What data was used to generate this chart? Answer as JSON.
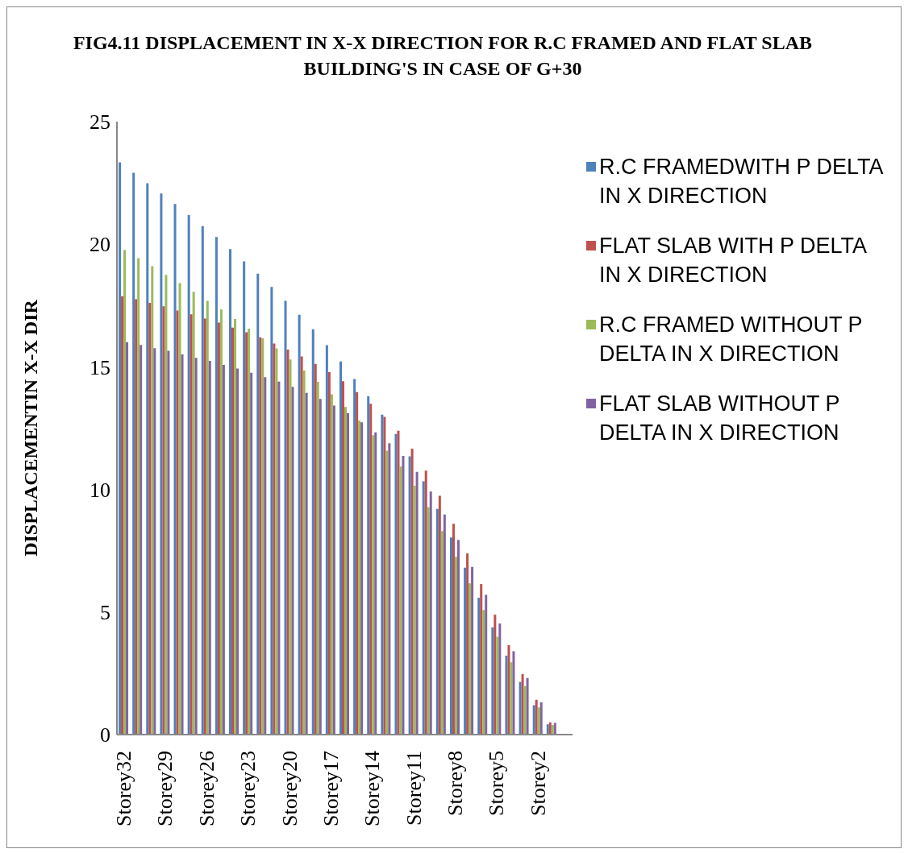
{
  "chart_data": {
    "type": "bar",
    "title": "FIG4.11 DISPLACEMENT IN X-X DIRECTION FOR R.C FRAMED AND FLAT SLAB BUILDING'S IN CASE OF G+30",
    "ylabel": "DISPLACEMENTIN X-X DIR",
    "categories": [
      "Storey32",
      null,
      null,
      "Storey29",
      null,
      null,
      "Storey26",
      null,
      null,
      "Storey23",
      null,
      null,
      "Storey20",
      null,
      null,
      "Storey17",
      null,
      null,
      "Storey14",
      null,
      null,
      "Storey11",
      null,
      null,
      "Storey8",
      null,
      null,
      "Storey5",
      null,
      null,
      "Storey2",
      null,
      null
    ],
    "series": [
      {
        "name": "R.C FRAMEDWITH P DELTA IN X DIRECTION",
        "color": "#4f81bd",
        "values": [
          23.34,
          22.91,
          22.49,
          22.07,
          21.64,
          21.19,
          20.74,
          20.29,
          19.8,
          19.3,
          18.8,
          18.26,
          17.69,
          17.12,
          16.53,
          15.88,
          15.22,
          14.5,
          13.8,
          13.05,
          12.26,
          11.35,
          10.33,
          9.21,
          8.04,
          6.81,
          5.58,
          4.37,
          3.22,
          2.15,
          1.2,
          0.42,
          null
        ]
      },
      {
        "name": "FLAT SLAB WITH P DELTA IN X DIRECTION",
        "color": "#c0504d",
        "values": [
          17.88,
          17.76,
          17.61,
          17.47,
          17.3,
          17.14,
          16.97,
          16.8,
          16.6,
          16.41,
          16.2,
          15.95,
          15.7,
          15.42,
          15.12,
          14.78,
          14.41,
          13.97,
          13.49,
          12.96,
          12.39,
          11.66,
          10.77,
          9.74,
          8.6,
          7.39,
          6.14,
          4.89,
          3.65,
          2.47,
          1.42,
          0.5,
          null
        ]
      },
      {
        "name": "R.C FRAMED WITHOUT P DELTA IN X DIRECTION",
        "color": "#9bbb59",
        "values": [
          19.77,
          19.43,
          19.1,
          18.75,
          18.41,
          18.06,
          17.69,
          17.34,
          16.95,
          16.56,
          16.16,
          15.75,
          15.3,
          14.85,
          14.39,
          13.88,
          13.36,
          12.8,
          12.21,
          11.58,
          10.93,
          10.15,
          9.27,
          8.3,
          7.25,
          6.17,
          5.08,
          3.99,
          2.95,
          1.98,
          1.11,
          0.39,
          null
        ]
      },
      {
        "name": "FLAT SLAB WITHOUT P DELTA IN X DIRECTION",
        "color": "#8064a2",
        "values": [
          16.01,
          15.89,
          15.76,
          15.65,
          15.51,
          15.37,
          15.24,
          15.08,
          14.93,
          14.76,
          14.58,
          14.4,
          14.18,
          13.94,
          13.69,
          13.42,
          13.11,
          12.74,
          12.33,
          11.88,
          11.37,
          10.72,
          9.91,
          8.98,
          7.94,
          6.84,
          5.7,
          4.53,
          3.4,
          2.31,
          1.32,
          0.48,
          null
        ]
      }
    ],
    "ylim": [
      0,
      25
    ],
    "yticks": [
      0,
      5,
      10,
      15,
      20,
      25
    ],
    "grid": false,
    "legend": "right"
  }
}
